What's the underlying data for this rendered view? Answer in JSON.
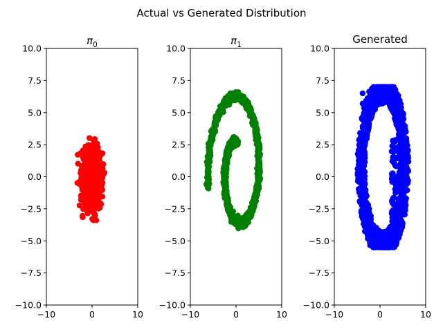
{
  "figure": {
    "suptitle": "Actual vs Generated Distribution"
  },
  "chart_data": [
    {
      "type": "scatter",
      "title": "π₀",
      "title_main": "π",
      "title_sub": "0",
      "xlim": [
        -10,
        10
      ],
      "ylim": [
        -10,
        10
      ],
      "xticks": [
        "−10",
        "0",
        "10"
      ],
      "yticks": [
        "−10.0",
        "−7.5",
        "−5.0",
        "−2.5",
        "0.0",
        "2.5",
        "5.0",
        "7.5",
        "10.0"
      ],
      "color": "#ff0000",
      "shape": "gaussian blob",
      "x_range": [
        -3.2,
        3.1
      ],
      "y_range": [
        -3.4,
        3.4
      ],
      "grid": false
    },
    {
      "type": "scatter",
      "title": "π₁",
      "title_main": "π",
      "title_sub": "1",
      "xlim": [
        -10,
        10
      ],
      "ylim": [
        -10,
        10
      ],
      "xticks": [
        "−10",
        "0",
        "10"
      ],
      "yticks": [
        "−10.0",
        "−7.5",
        "−5.0",
        "−2.5",
        "0.0",
        "2.5",
        "5.0",
        "7.5",
        "10.0"
      ],
      "color": "#008000",
      "shape": "spiral",
      "x_range": [
        -5.4,
        6.3
      ],
      "y_range": [
        -5.6,
        7.1
      ],
      "grid": false
    },
    {
      "type": "scatter",
      "title": "Generated",
      "xlim": [
        -10,
        10
      ],
      "ylim": [
        -10,
        10
      ],
      "xticks": [
        "−10",
        "0",
        "10"
      ],
      "yticks": [
        "−10.0",
        "−7.5",
        "−5.0",
        "−2.5",
        "0.0",
        "2.5",
        "5.0",
        "7.5",
        "10.0"
      ],
      "color": "#0000ff",
      "shape": "ring",
      "x_range": [
        -5.0,
        6.3
      ],
      "y_range": [
        -5.5,
        7.0
      ],
      "outliers": [
        [
          -3.8,
          6.5
        ],
        [
          -3.8,
          5.7
        ]
      ],
      "grid": false
    }
  ]
}
